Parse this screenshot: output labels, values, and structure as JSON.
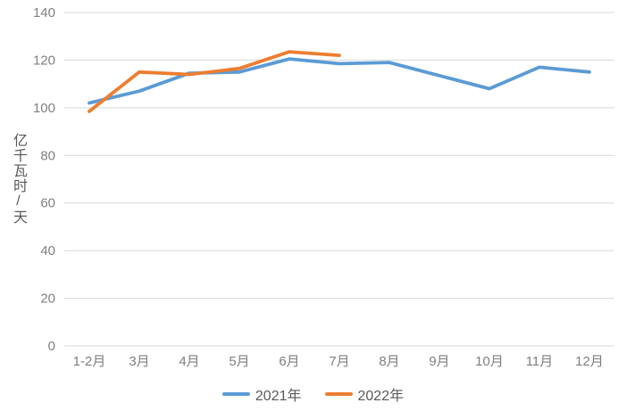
{
  "chart_data": {
    "type": "line",
    "title": "",
    "xlabel": "",
    "ylabel": "亿千瓦时/天",
    "categories": [
      "1-2月",
      "3月",
      "4月",
      "5月",
      "6月",
      "7月",
      "8月",
      "9月",
      "10月",
      "11月",
      "12月"
    ],
    "series": [
      {
        "name": "2021年",
        "color": "#5B9BD5",
        "values": [
          102,
          107,
          114.5,
          115,
          120.5,
          118.5,
          119,
          113.5,
          108,
          117,
          115
        ]
      },
      {
        "name": "2022年",
        "color": "#ED7D31",
        "values": [
          98.5,
          115,
          114,
          116.5,
          123.5,
          122,
          null,
          null,
          null,
          null,
          null
        ]
      }
    ],
    "ylim": [
      0,
      140
    ],
    "ytick_step": 20,
    "yticks": [
      0,
      20,
      40,
      60,
      80,
      100,
      120,
      140
    ],
    "grid": true,
    "gridline_color": "#D9D9D9",
    "axis_text_color": "#7f7f7f",
    "legend_position": "bottom"
  }
}
